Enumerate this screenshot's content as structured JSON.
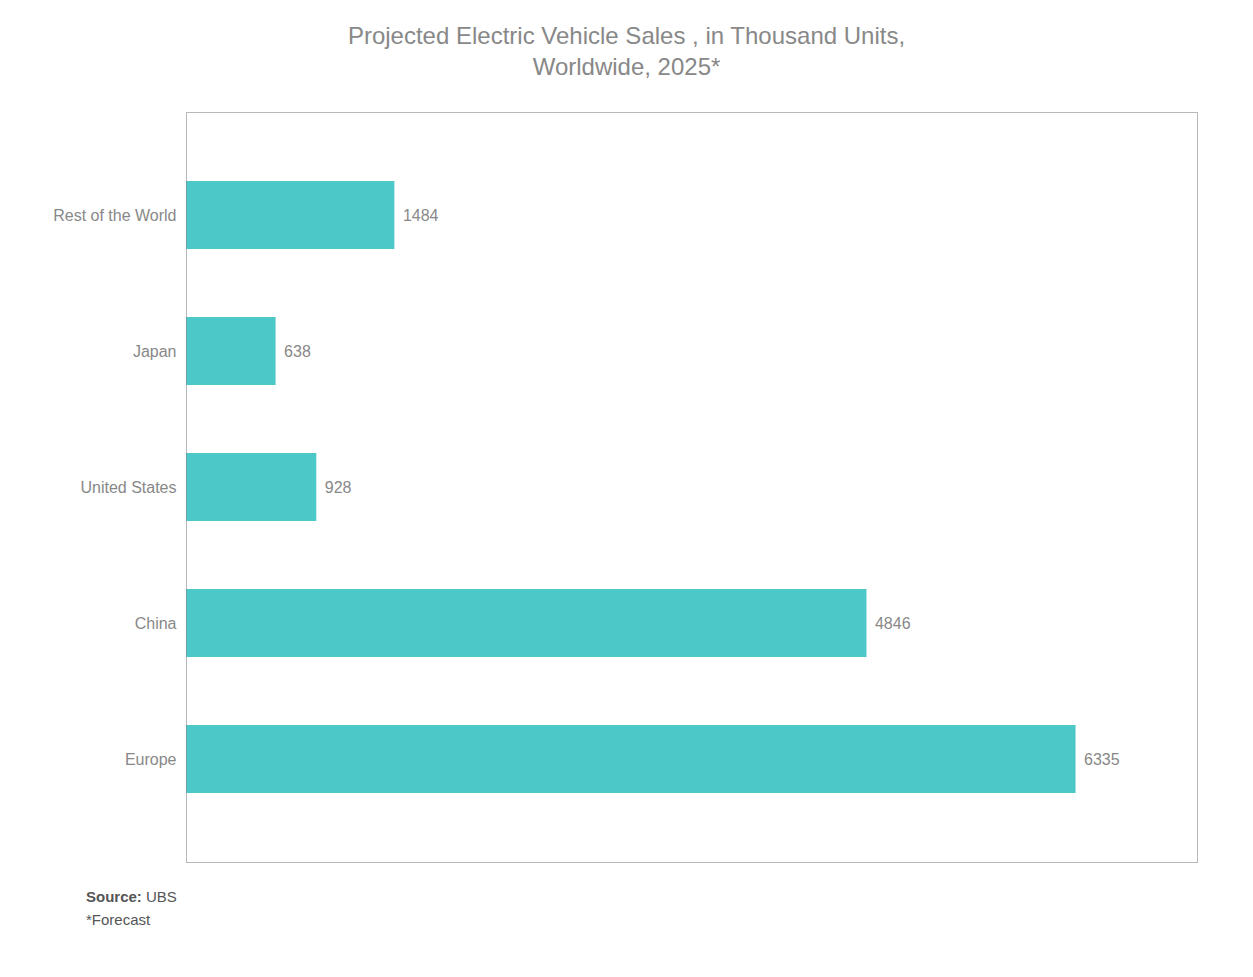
{
  "chart_data": {
    "type": "bar",
    "orientation": "horizontal",
    "title": "Projected Electric Vehicle Sales , in Thousand Units,\nWorldwide, 2025*",
    "categories": [
      "Rest of the World",
      "Japan",
      "United States",
      "China",
      "Europe"
    ],
    "values": [
      1484,
      638,
      928,
      4846,
      6335
    ],
    "color": "#4DC8C8",
    "xlim": [
      0,
      7200
    ],
    "data_labels": true,
    "tick_labels": "y",
    "grid": false,
    "annotations": [
      "Source: UBS",
      "*Forecast"
    ]
  }
}
